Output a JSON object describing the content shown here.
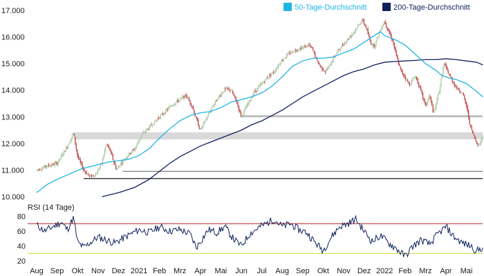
{
  "chart_data": [
    {
      "type": "candlestick",
      "panel": "price",
      "title": "",
      "xlabel": "",
      "ylabel": "",
      "ylim": [
        10000,
        17000
      ],
      "y_ticks": [
        "10.000",
        "11.000",
        "12.000",
        "13.000",
        "14.000",
        "15.000",
        "16.000",
        "17.000"
      ],
      "x_ticks": [
        "Aug",
        "Sep",
        "Okt",
        "Nov",
        "Dez",
        "2021",
        "Feb",
        "Mrz",
        "Apr",
        "Mai",
        "Jun",
        "Jul",
        "Aug",
        "Sep",
        "Okt",
        "Nov",
        "Dez",
        "2022",
        "Feb",
        "Mrz",
        "Apr",
        "Mai"
      ],
      "legend": {
        "placement": "top-right",
        "items": [
          {
            "label": "50-Tage-Durchschnitt",
            "color": "#1fb3e3"
          },
          {
            "label": "200-Tage-Durchschnitt",
            "color": "#0d1f5c"
          }
        ]
      },
      "price_path": [
        [
          0,
          11000
        ],
        [
          0.5,
          11150
        ],
        [
          1,
          11250
        ],
        [
          1.5,
          11900
        ],
        [
          1.8,
          12400
        ],
        [
          2.0,
          11500
        ],
        [
          2.3,
          11000
        ],
        [
          2.6,
          10750
        ],
        [
          2.9,
          10850
        ],
        [
          3.2,
          11300
        ],
        [
          3.4,
          12000
        ],
        [
          3.6,
          11700
        ],
        [
          3.9,
          11000
        ],
        [
          4.1,
          11250
        ],
        [
          4.5,
          11600
        ],
        [
          4.8,
          11800
        ],
        [
          5.1,
          12300
        ],
        [
          5.5,
          12600
        ],
        [
          6.0,
          13000
        ],
        [
          6.3,
          13200
        ],
        [
          6.6,
          13450
        ],
        [
          7.0,
          13650
        ],
        [
          7.3,
          13800
        ],
        [
          7.6,
          13400
        ],
        [
          7.8,
          12900
        ],
        [
          8.0,
          12500
        ],
        [
          8.3,
          12950
        ],
        [
          8.6,
          13400
        ],
        [
          8.9,
          13750
        ],
        [
          9.2,
          14050
        ],
        [
          9.5,
          14000
        ],
        [
          9.8,
          13500
        ],
        [
          10.0,
          13000
        ],
        [
          10.3,
          13450
        ],
        [
          10.6,
          13900
        ],
        [
          11.0,
          14250
        ],
        [
          11.3,
          14500
        ],
        [
          11.6,
          14700
        ],
        [
          11.9,
          15050
        ],
        [
          12.2,
          15300
        ],
        [
          12.6,
          15500
        ],
        [
          13.0,
          15600
        ],
        [
          13.3,
          15700
        ],
        [
          13.5,
          15500
        ],
        [
          13.7,
          15100
        ],
        [
          13.9,
          14850
        ],
        [
          14.1,
          14700
        ],
        [
          14.3,
          14900
        ],
        [
          14.6,
          15350
        ],
        [
          15.0,
          15750
        ],
        [
          15.4,
          16100
        ],
        [
          15.7,
          16400
        ],
        [
          15.9,
          16650
        ],
        [
          16.1,
          16350
        ],
        [
          16.3,
          15800
        ],
        [
          16.5,
          15650
        ],
        [
          16.8,
          16300
        ],
        [
          17.0,
          16600
        ],
        [
          17.2,
          16200
        ],
        [
          17.4,
          15850
        ],
        [
          17.6,
          15200
        ],
        [
          17.8,
          14700
        ],
        [
          18.0,
          14500
        ],
        [
          18.2,
          14200
        ],
        [
          18.5,
          14550
        ],
        [
          18.8,
          13900
        ],
        [
          19.0,
          13400
        ],
        [
          19.2,
          13800
        ],
        [
          19.4,
          13100
        ],
        [
          19.7,
          14100
        ],
        [
          19.9,
          15000
        ],
        [
          20.2,
          14500
        ],
        [
          20.5,
          14100
        ],
        [
          20.8,
          13900
        ],
        [
          21.0,
          13400
        ],
        [
          21.2,
          12600
        ],
        [
          21.4,
          12200
        ],
        [
          21.6,
          11900
        ],
        [
          21.8,
          12300
        ]
      ],
      "ma50": [
        [
          0,
          10150
        ],
        [
          0.5,
          10450
        ],
        [
          1,
          10650
        ],
        [
          1.6,
          10850
        ],
        [
          2.2,
          11050
        ],
        [
          3.0,
          11200
        ],
        [
          3.5,
          11300
        ],
        [
          4.0,
          11350
        ],
        [
          4.5,
          11400
        ],
        [
          5.0,
          11550
        ],
        [
          5.5,
          11800
        ],
        [
          6.0,
          12200
        ],
        [
          6.5,
          12550
        ],
        [
          7.0,
          12850
        ],
        [
          7.5,
          13050
        ],
        [
          8.0,
          13150
        ],
        [
          8.5,
          13200
        ],
        [
          9.0,
          13350
        ],
        [
          9.5,
          13550
        ],
        [
          10.0,
          13650
        ],
        [
          10.5,
          13750
        ],
        [
          11.0,
          13900
        ],
        [
          11.5,
          14150
        ],
        [
          12.0,
          14500
        ],
        [
          12.5,
          14900
        ],
        [
          13.0,
          15100
        ],
        [
          13.5,
          15200
        ],
        [
          14.0,
          15200
        ],
        [
          14.5,
          15250
        ],
        [
          15.0,
          15400
        ],
        [
          15.5,
          15550
        ],
        [
          16.0,
          15800
        ],
        [
          16.5,
          16050
        ],
        [
          16.8,
          16200
        ],
        [
          17.0,
          16050
        ],
        [
          17.5,
          15900
        ],
        [
          18.0,
          15700
        ],
        [
          18.5,
          15350
        ],
        [
          19.0,
          15000
        ],
        [
          19.5,
          14750
        ],
        [
          19.8,
          14550
        ],
        [
          20.2,
          14450
        ],
        [
          20.5,
          14400
        ],
        [
          21.0,
          14250
        ],
        [
          21.5,
          13950
        ],
        [
          21.8,
          13750
        ]
      ],
      "ma200": [
        [
          3.2,
          10000
        ],
        [
          4.0,
          10150
        ],
        [
          4.8,
          10350
        ],
        [
          5.5,
          10650
        ],
        [
          6.0,
          10950
        ],
        [
          6.5,
          11250
        ],
        [
          7.0,
          11500
        ],
        [
          7.5,
          11700
        ],
        [
          8.0,
          11900
        ],
        [
          8.5,
          12050
        ],
        [
          9.0,
          12200
        ],
        [
          9.5,
          12350
        ],
        [
          10.0,
          12500
        ],
        [
          10.5,
          12700
        ],
        [
          11.0,
          12850
        ],
        [
          11.5,
          13050
        ],
        [
          12.0,
          13250
        ],
        [
          12.5,
          13500
        ],
        [
          13.0,
          13750
        ],
        [
          13.5,
          13950
        ],
        [
          14.0,
          14150
        ],
        [
          14.5,
          14350
        ],
        [
          15.0,
          14550
        ],
        [
          15.5,
          14700
        ],
        [
          16.0,
          14800
        ],
        [
          16.5,
          14950
        ],
        [
          17.0,
          15050
        ],
        [
          17.5,
          15080
        ],
        [
          18.0,
          15100
        ],
        [
          18.5,
          15120
        ],
        [
          19.0,
          15150
        ],
        [
          19.5,
          15150
        ],
        [
          20.0,
          15180
        ],
        [
          20.5,
          15150
        ],
        [
          21.0,
          15100
        ],
        [
          21.5,
          15050
        ],
        [
          21.8,
          14950
        ]
      ],
      "reference_lines": [
        {
          "style": "band",
          "from": 12150,
          "to": 12420,
          "x_start": 1.8,
          "color": "#d9d9d9"
        },
        {
          "style": "line",
          "value": 13020,
          "x_start": 10.0,
          "color": "#b3b3b3"
        },
        {
          "style": "line",
          "value": 10950,
          "x_start": 4.2,
          "color": "#7f7f7f"
        },
        {
          "style": "line",
          "value": 10680,
          "x_start": 2.3,
          "color": "#1a1a1a"
        }
      ],
      "up_color": "#a9c8a3",
      "down_color": "#c24b4b"
    },
    {
      "type": "line",
      "panel": "rsi",
      "title": "RSI (14 Tage)",
      "ylim": [
        20,
        85
      ],
      "y_ticks": [
        "20",
        "40",
        "60",
        "80"
      ],
      "thresholds": [
        {
          "value": 70,
          "color": "#b71c1c"
        },
        {
          "value": 30,
          "color": "#c8d82a"
        }
      ],
      "line_color": "#0d1f5c",
      "rsi_path": [
        [
          0,
          68
        ],
        [
          0.4,
          60
        ],
        [
          0.8,
          66
        ],
        [
          1.2,
          72
        ],
        [
          1.5,
          62
        ],
        [
          1.8,
          78
        ],
        [
          2.0,
          45
        ],
        [
          2.3,
          38
        ],
        [
          2.6,
          44
        ],
        [
          3.0,
          52
        ],
        [
          3.4,
          48
        ],
        [
          3.8,
          44
        ],
        [
          4.2,
          50
        ],
        [
          4.6,
          56
        ],
        [
          5.0,
          62
        ],
        [
          5.5,
          58
        ],
        [
          6.0,
          66
        ],
        [
          6.5,
          60
        ],
        [
          7.0,
          62
        ],
        [
          7.5,
          56
        ],
        [
          7.8,
          38
        ],
        [
          8.0,
          46
        ],
        [
          8.4,
          62
        ],
        [
          8.8,
          58
        ],
        [
          9.2,
          66
        ],
        [
          9.6,
          50
        ],
        [
          10.0,
          40
        ],
        [
          10.4,
          56
        ],
        [
          10.8,
          64
        ],
        [
          11.2,
          70
        ],
        [
          11.6,
          76
        ],
        [
          12.0,
          66
        ],
        [
          12.4,
          70
        ],
        [
          12.8,
          62
        ],
        [
          13.2,
          58
        ],
        [
          13.6,
          45
        ],
        [
          14.0,
          34
        ],
        [
          14.4,
          52
        ],
        [
          14.8,
          66
        ],
        [
          15.2,
          70
        ],
        [
          15.6,
          76
        ],
        [
          16.0,
          60
        ],
        [
          16.4,
          46
        ],
        [
          16.8,
          54
        ],
        [
          17.2,
          44
        ],
        [
          17.6,
          36
        ],
        [
          18.0,
          26
        ],
        [
          18.4,
          40
        ],
        [
          18.8,
          48
        ],
        [
          19.2,
          42
        ],
        [
          19.6,
          56
        ],
        [
          20.0,
          66
        ],
        [
          20.4,
          52
        ],
        [
          20.8,
          44
        ],
        [
          21.2,
          40
        ],
        [
          21.5,
          33
        ],
        [
          21.8,
          38
        ]
      ]
    }
  ]
}
